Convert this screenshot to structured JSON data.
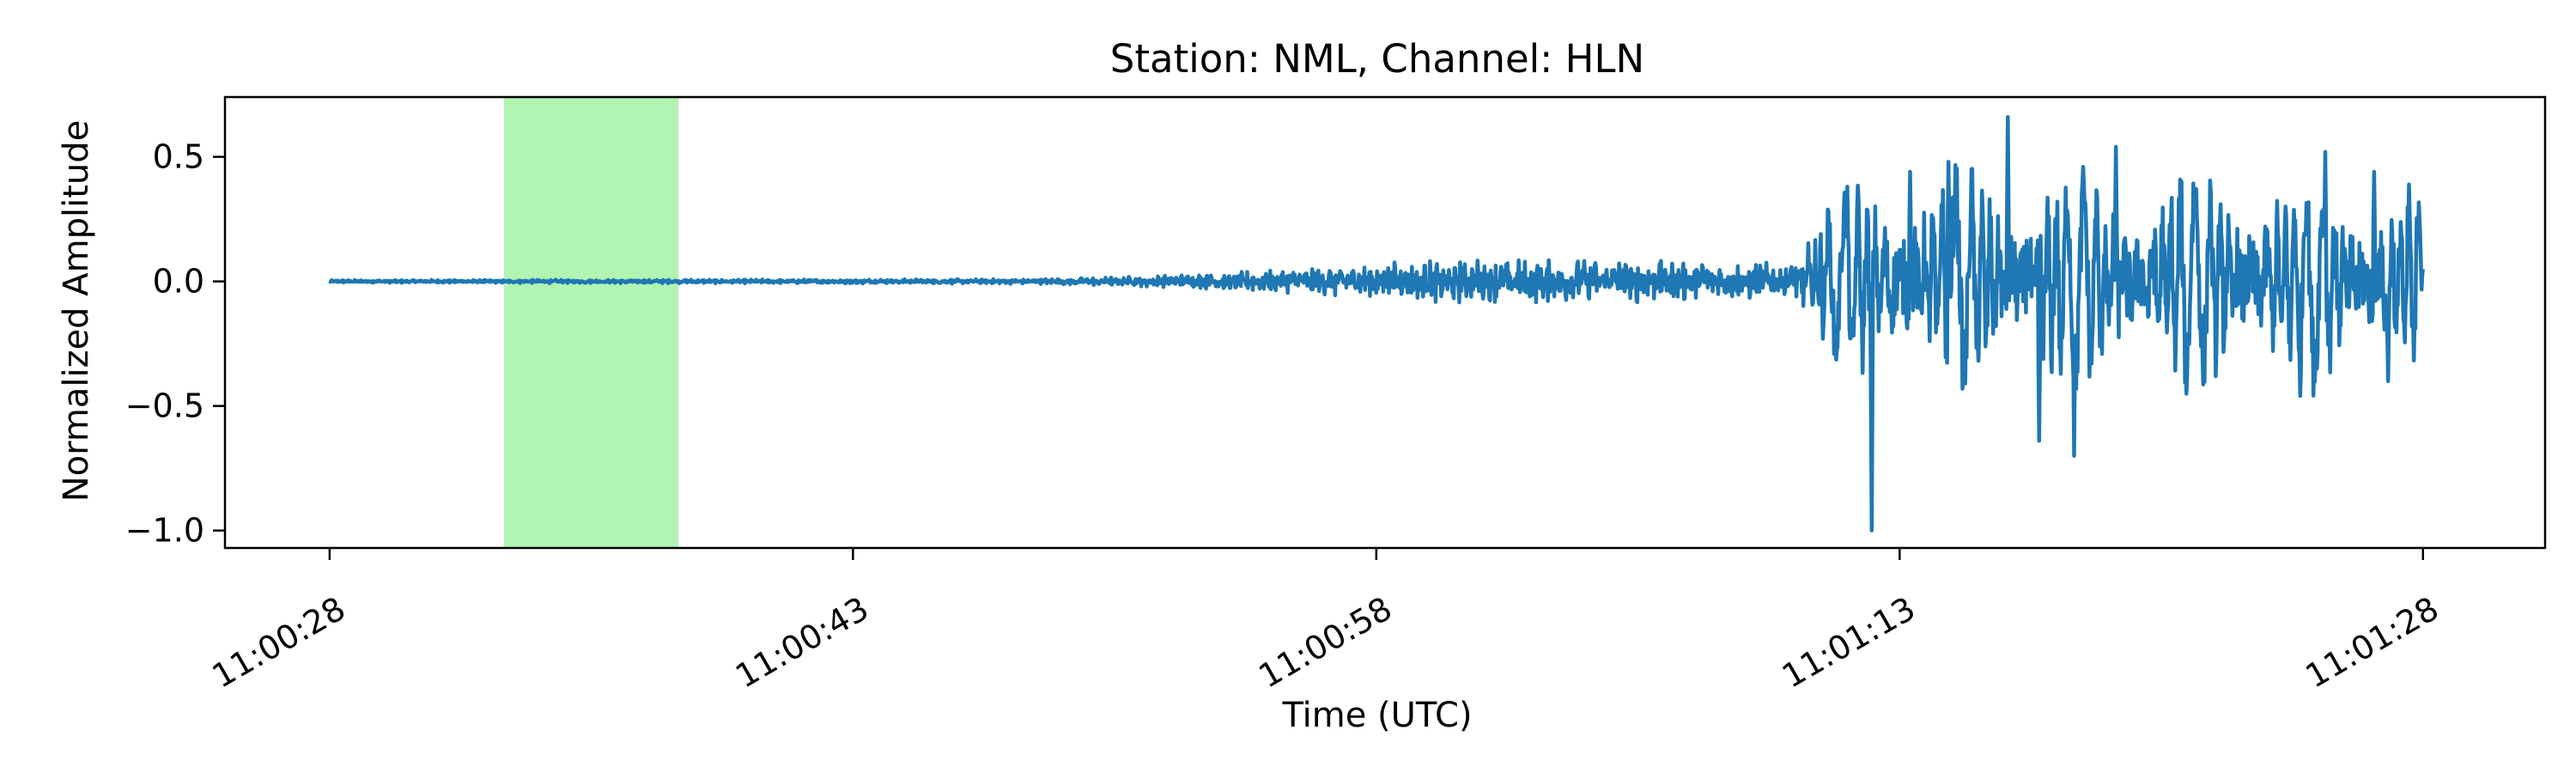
{
  "chart_data": {
    "type": "line",
    "title": "Station: NML, Channel: HLN",
    "xlabel": "Time (UTC)",
    "ylabel": "Normalized Amplitude",
    "x_unit": "seconds after 11:00:28",
    "xlim": [
      -3,
      63.5
    ],
    "ylim": [
      -1.07,
      0.74
    ],
    "x_ticks": [
      {
        "value": 0,
        "label": "11:00:28"
      },
      {
        "value": 15,
        "label": "11:00:43"
      },
      {
        "value": 30,
        "label": "11:00:58"
      },
      {
        "value": 45,
        "label": "11:01:13"
      },
      {
        "value": 60,
        "label": "11:01:28"
      }
    ],
    "y_ticks": [
      {
        "value": 0.5,
        "label": "0.5"
      },
      {
        "value": 0.0,
        "label": "0.0"
      },
      {
        "value": -0.5,
        "label": "−0.5"
      },
      {
        "value": -1.0,
        "label": "−1.0"
      }
    ],
    "highlight_span": {
      "x_start": 5.0,
      "x_end": 10.0,
      "color": "#b2f5b2"
    },
    "series": [
      {
        "color": "#1f77b4",
        "envelope": [
          {
            "t": 0,
            "amp": 0.006
          },
          {
            "t": 10,
            "amp": 0.008
          },
          {
            "t": 20,
            "amp": 0.01
          },
          {
            "t": 23,
            "amp": 0.02
          },
          {
            "t": 26,
            "amp": 0.04
          },
          {
            "t": 29,
            "amp": 0.07
          },
          {
            "t": 32,
            "amp": 0.09
          },
          {
            "t": 38,
            "amp": 0.09
          },
          {
            "t": 42,
            "amp": 0.08
          },
          {
            "t": 43,
            "amp": 0.32
          },
          {
            "t": 45,
            "amp": 0.45
          },
          {
            "t": 50,
            "amp": 0.45
          },
          {
            "t": 60,
            "amp": 0.42
          }
        ],
        "peaks": [
          {
            "t": 43.5,
            "y": 0.38
          },
          {
            "t": 44.2,
            "y": -1.0
          },
          {
            "t": 45.3,
            "y": 0.44
          },
          {
            "t": 46.4,
            "y": 0.48
          },
          {
            "t": 48.1,
            "y": 0.66
          },
          {
            "t": 49.0,
            "y": -0.64
          },
          {
            "t": 50.0,
            "y": -0.7
          },
          {
            "t": 51.2,
            "y": 0.54
          },
          {
            "t": 57.2,
            "y": 0.52
          },
          {
            "t": 58.6,
            "y": 0.44
          },
          {
            "t": 59.0,
            "y": -0.4
          },
          {
            "t": 60.0,
            "y": 0.05
          }
        ]
      }
    ]
  }
}
